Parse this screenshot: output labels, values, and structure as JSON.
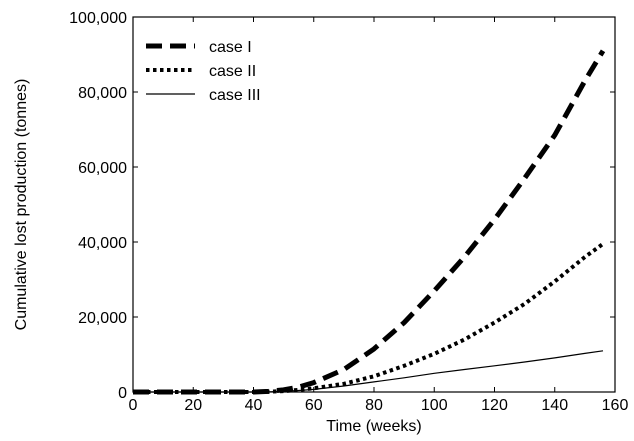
{
  "chart_data": {
    "type": "line",
    "title": "",
    "xlabel": "Time (weeks)",
    "ylabel": "Cumulative lost production (tonnes)",
    "xlim": [
      0,
      160
    ],
    "ylim": [
      0,
      100000
    ],
    "xticks": [
      0,
      20,
      40,
      60,
      80,
      100,
      120,
      140,
      160
    ],
    "xtick_labels": [
      "0",
      "20",
      "40",
      "60",
      "80",
      "100",
      "120",
      "140",
      "160"
    ],
    "yticks": [
      0,
      20000,
      40000,
      60000,
      80000,
      100000
    ],
    "ytick_labels": [
      "0",
      "20,000",
      "40,000",
      "60,000",
      "80,000",
      "100,000"
    ],
    "grid": false,
    "legend_position": "top-left",
    "series": [
      {
        "name": "case I",
        "style": "dashed",
        "color": "#000000",
        "x": [
          0,
          40,
          45,
          50,
          55,
          60,
          70,
          80,
          90,
          100,
          110,
          120,
          130,
          140,
          150,
          156
        ],
        "y": [
          0,
          0,
          150,
          600,
          1300,
          2500,
          6000,
          11500,
          18500,
          27000,
          36000,
          46000,
          57000,
          68500,
          83000,
          91000
        ]
      },
      {
        "name": "case II",
        "style": "dotted",
        "color": "#000000",
        "x": [
          0,
          40,
          45,
          50,
          55,
          60,
          70,
          80,
          90,
          100,
          110,
          120,
          130,
          140,
          150,
          156
        ],
        "y": [
          0,
          0,
          80,
          250,
          550,
          1000,
          2200,
          4200,
          7000,
          10200,
          14000,
          18500,
          23500,
          29500,
          36000,
          39500
        ]
      },
      {
        "name": "case III",
        "style": "solid",
        "color": "#000000",
        "x": [
          0,
          40,
          45,
          50,
          55,
          60,
          70,
          80,
          90,
          100,
          110,
          120,
          130,
          140,
          150,
          156
        ],
        "y": [
          0,
          0,
          60,
          200,
          400,
          700,
          1600,
          2700,
          3800,
          5000,
          6000,
          7000,
          8000,
          9100,
          10300,
          11000
        ]
      }
    ]
  }
}
